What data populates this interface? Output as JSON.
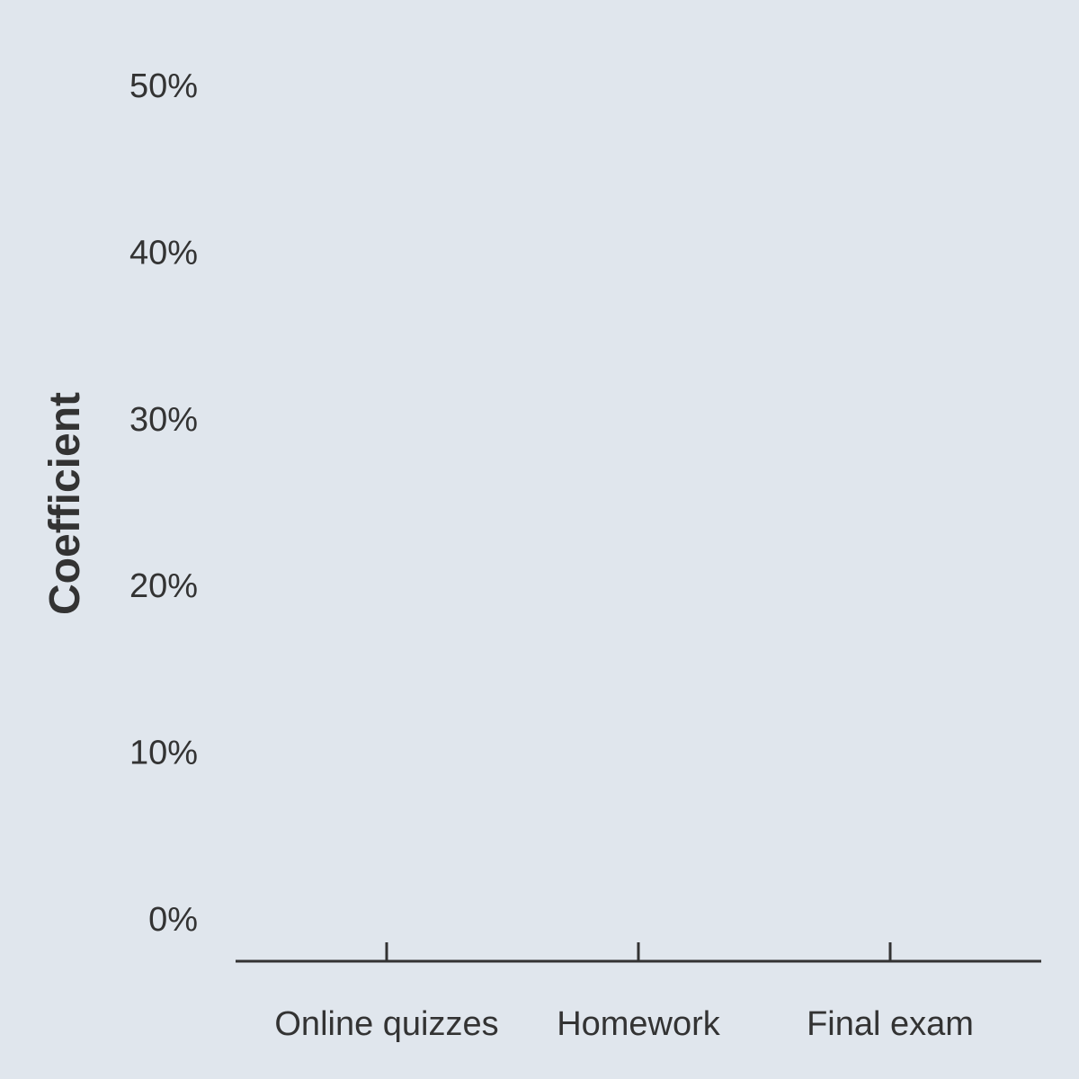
{
  "chart_data": {
    "type": "bar",
    "title": "",
    "xlabel": "",
    "ylabel": "Coefficient",
    "categories": [
      "Online quizzes",
      "Homework",
      "Final exam"
    ],
    "series": [
      {
        "values": [
          null,
          null,
          null
        ]
      }
    ],
    "ylim": [
      0,
      0.5
    ],
    "yticks": [
      0,
      0.1,
      0.2,
      0.3,
      0.4,
      0.5
    ],
    "ytick_labels": [
      "0%",
      "10%",
      "20%",
      "30%",
      "40%",
      "50%"
    ],
    "grid": false,
    "legend": "none",
    "colors": {
      "background": "#e0e6ed",
      "axis": "#333333",
      "text": "#333333"
    }
  }
}
